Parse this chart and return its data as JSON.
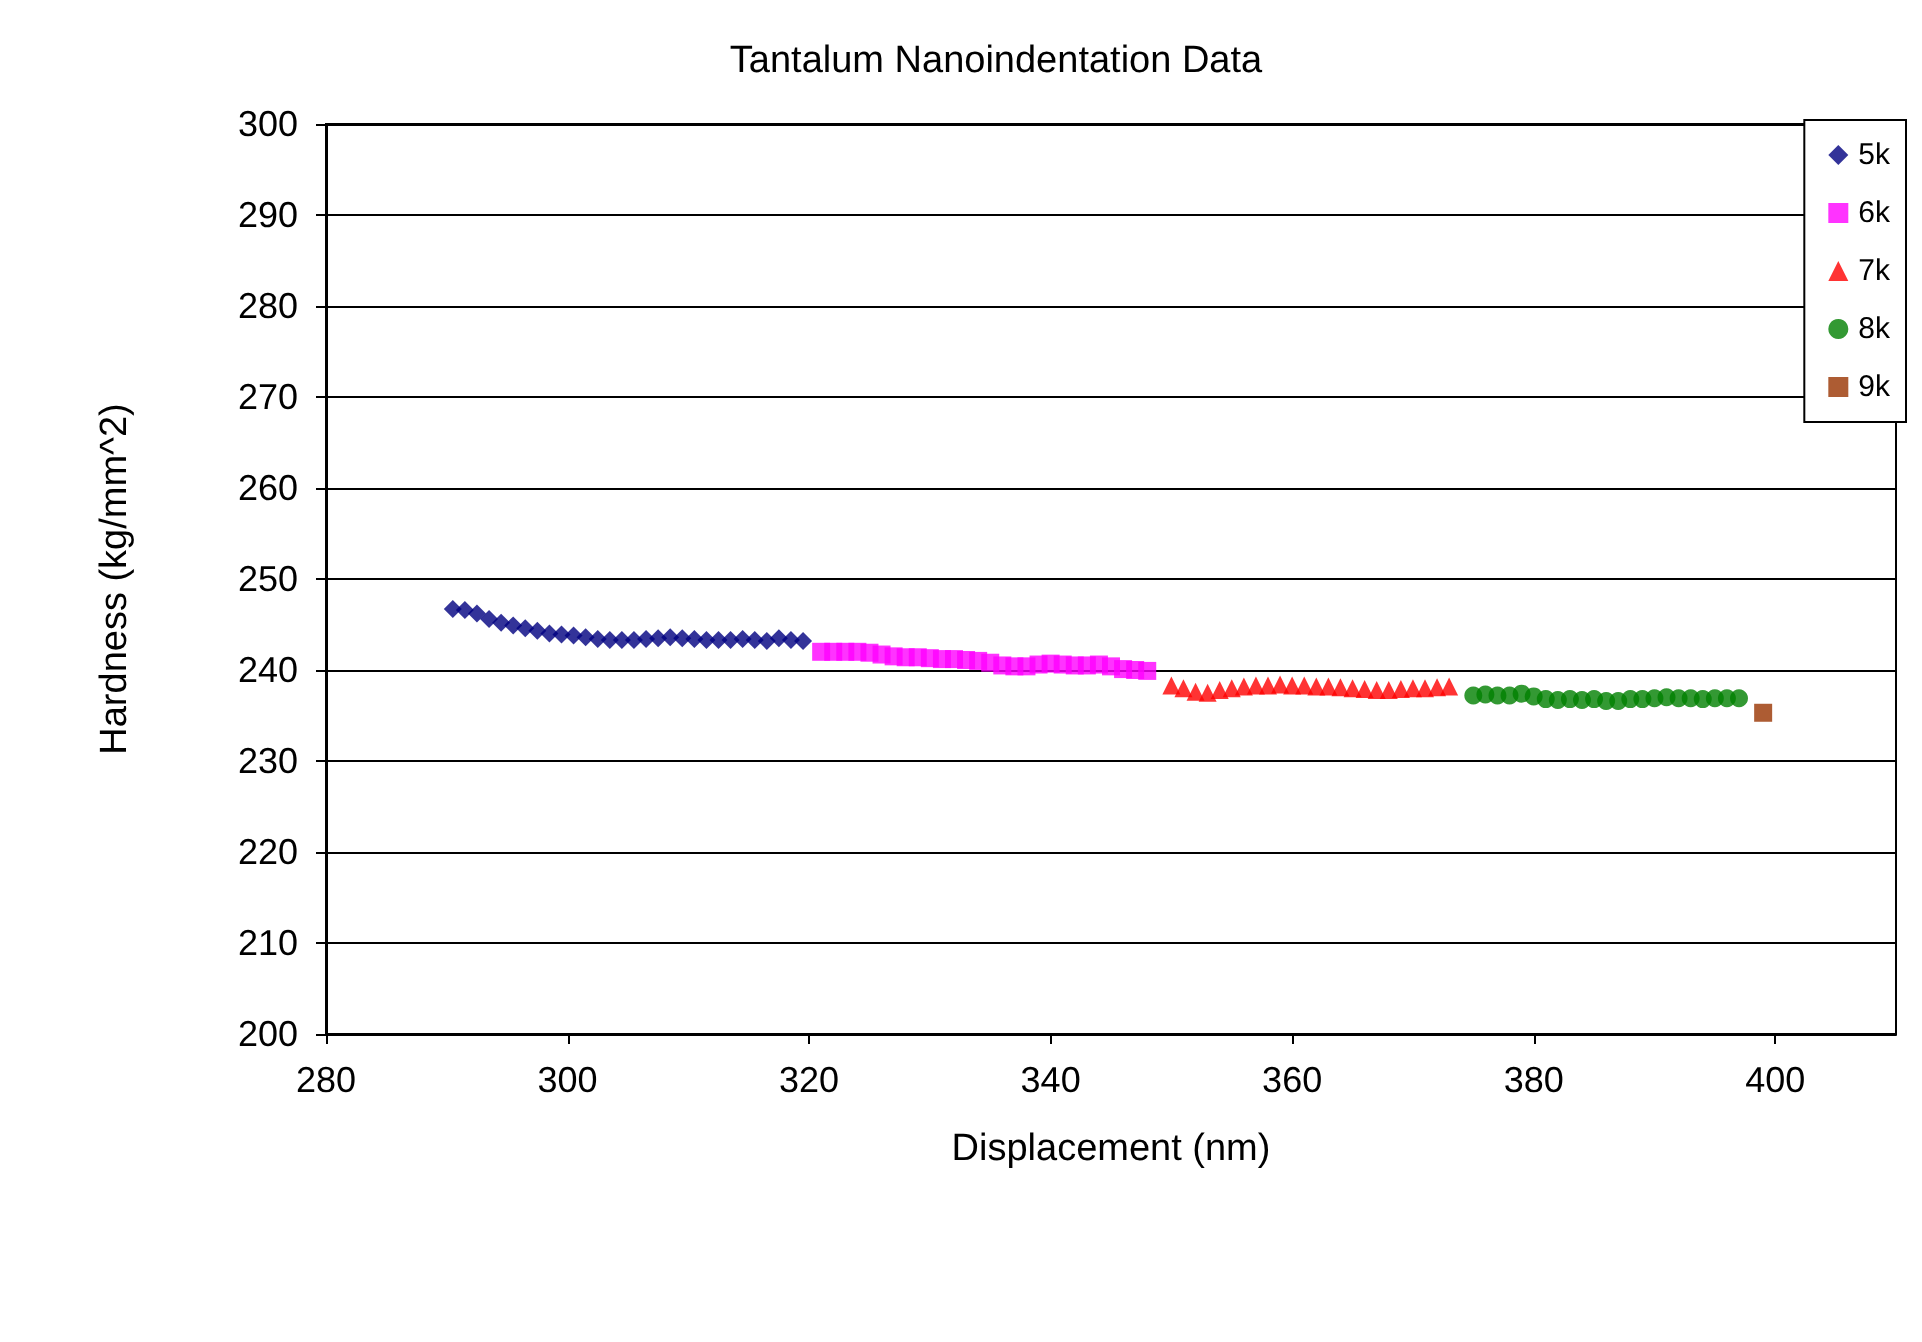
{
  "chart_data": {
    "type": "scatter",
    "title": "Tantalum Nanoindentation Data",
    "xlabel": "Displacement (nm)",
    "ylabel": "Hardness (kg/mm^2)",
    "xlim": [
      280,
      410
    ],
    "xticks": [
      280,
      300,
      320,
      340,
      360,
      380,
      400
    ],
    "ylim": [
      200,
      300
    ],
    "yticks": [
      200,
      210,
      220,
      230,
      240,
      250,
      260,
      270,
      280,
      290,
      300
    ],
    "grid": "y",
    "legend": "top right",
    "series": [
      {
        "name": "5k",
        "color": "#000080",
        "marker": "diamond",
        "x": [
          290.5,
          291.5,
          292.5,
          293.5,
          294.5,
          295.5,
          296.5,
          297.5,
          298.5,
          299.5,
          300.5,
          301.5,
          302.5,
          303.5,
          304.5,
          305.5,
          306.5,
          307.5,
          308.5,
          309.5,
          310.5,
          311.5,
          312.5,
          313.5,
          314.5,
          315.5,
          316.5,
          317.5,
          318.5,
          319.5
        ],
        "values": [
          246.7,
          246.6,
          246.2,
          245.6,
          245.2,
          244.9,
          244.6,
          244.3,
          244.0,
          243.9,
          243.8,
          243.6,
          243.4,
          243.3,
          243.3,
          243.3,
          243.4,
          243.5,
          243.6,
          243.5,
          243.4,
          243.3,
          243.3,
          243.3,
          243.4,
          243.3,
          243.2,
          243.5,
          243.3,
          243.2
        ]
      },
      {
        "name": "6k",
        "color": "#ff00ff",
        "marker": "square",
        "x": [
          321,
          322,
          323,
          324,
          325,
          326,
          327,
          328,
          329,
          330,
          331,
          332,
          333,
          334,
          335,
          336,
          337,
          338,
          339,
          340,
          341,
          342,
          343,
          344,
          345,
          346,
          347,
          348
        ],
        "values": [
          242.0,
          242.0,
          242.0,
          242.0,
          241.9,
          241.7,
          241.5,
          241.4,
          241.4,
          241.3,
          241.2,
          241.2,
          241.1,
          241.0,
          240.8,
          240.5,
          240.4,
          240.4,
          240.6,
          240.7,
          240.6,
          240.5,
          240.5,
          240.6,
          240.4,
          240.1,
          240.0,
          239.9
        ]
      },
      {
        "name": "7k",
        "color": "#ff0000",
        "marker": "triangle",
        "x": [
          350,
          351,
          352,
          353,
          354,
          355,
          356,
          357,
          358,
          359,
          360,
          361,
          362,
          363,
          364,
          365,
          366,
          367,
          368,
          369,
          370,
          371,
          372,
          373
        ],
        "values": [
          238.3,
          238.0,
          237.6,
          237.5,
          237.8,
          238.0,
          238.2,
          238.3,
          238.3,
          238.4,
          238.3,
          238.3,
          238.2,
          238.2,
          238.1,
          238.0,
          237.9,
          237.8,
          237.8,
          237.9,
          238.0,
          238.0,
          238.1,
          238.2
        ]
      },
      {
        "name": "8k",
        "color": "#008000",
        "marker": "circle",
        "x": [
          375,
          376,
          377,
          378,
          379,
          380,
          381,
          382,
          383,
          384,
          385,
          386,
          387,
          388,
          389,
          390,
          391,
          392,
          393,
          394,
          395,
          396,
          397
        ],
        "values": [
          237.2,
          237.3,
          237.2,
          237.2,
          237.4,
          237.1,
          236.8,
          236.7,
          236.8,
          236.7,
          236.8,
          236.6,
          236.6,
          236.8,
          236.8,
          236.9,
          237.0,
          236.9,
          236.9,
          236.8,
          236.9,
          236.9,
          236.9
        ]
      },
      {
        "name": "9k",
        "color": "#993300",
        "marker": "square",
        "x": [
          399
        ],
        "values": [
          235.3
        ]
      }
    ]
  }
}
